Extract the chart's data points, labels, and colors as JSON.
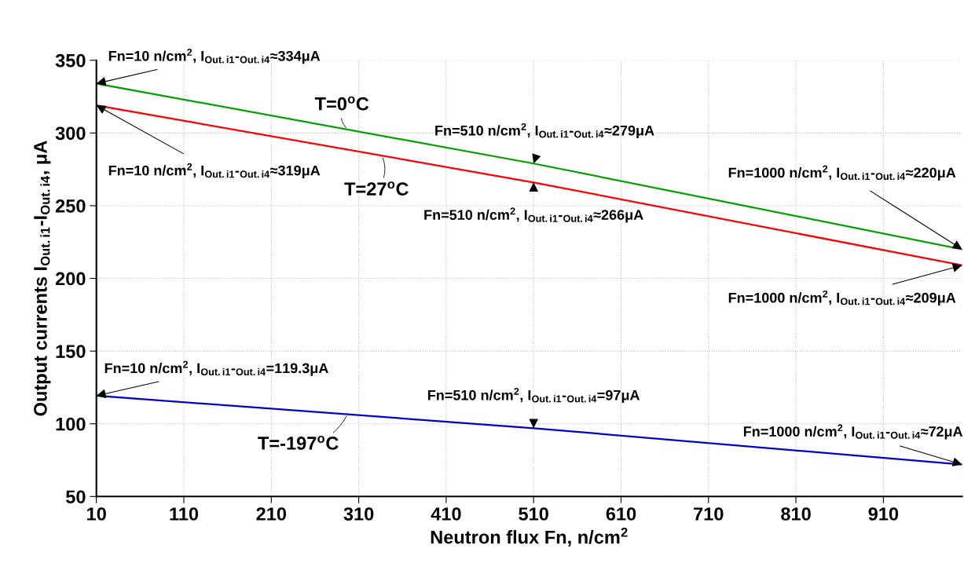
{
  "chart_data": {
    "type": "line",
    "xlabel": "Neutron flux Fn, n/cm$^{2}$",
    "ylabel": "Output currents I$_{Out.i1}$-I$_{Out.i4}$, μA",
    "x": [
      10,
      510,
      1000
    ],
    "series": [
      {
        "name": "T=0$^{o}$C",
        "color": "#00a000",
        "values": [
          334,
          279,
          220
        ]
      },
      {
        "name": "T=27$^{o}$C",
        "color": "#ff0000",
        "values": [
          319,
          266,
          209
        ]
      },
      {
        "name": "T=-197$^{o}$C",
        "color": "#0000d0",
        "values": [
          119.3,
          97,
          72
        ]
      }
    ],
    "xlim": [
      10,
      1000
    ],
    "xticks": [
      10,
      110,
      210,
      310,
      410,
      510,
      610,
      710,
      810,
      910
    ],
    "ylim": [
      50,
      350
    ],
    "yticks": [
      50,
      100,
      150,
      200,
      250,
      300,
      350
    ],
    "grid": true,
    "line_style": "solid",
    "marker": "none",
    "legend": false,
    "annotations": [
      {
        "text": "Fn=10 n/cm$^{2}$, I$_{Out.i1}$-$_{Out.i4}$≈334μA",
        "x": 10,
        "y": 334
      },
      {
        "text": "Fn=10 n/cm$^{2}$, I$_{Out.i1}$-$_{Out.i4}$≈319μA",
        "x": 10,
        "y": 319
      },
      {
        "text": "Fn=510 n/cm$^{2}$, I$_{Out.i1}$-$_{Out.i4}$≈279μA",
        "x": 510,
        "y": 279
      },
      {
        "text": "Fn=510 n/cm$^{2}$, I$_{Out.i1}$-$_{Out.i4}$≈266μA",
        "x": 510,
        "y": 266
      },
      {
        "text": "Fn=1000 n/cm$^{2}$, I$_{Out.i1}$-$_{Out.i4}$≈220μA",
        "x": 1000,
        "y": 220
      },
      {
        "text": "Fn=1000 n/cm$^{2}$, I$_{Out.i1}$-$_{Out.i4}$≈209μA",
        "x": 1000,
        "y": 209
      },
      {
        "text": "Fn=10 n/cm$^{2}$, I$_{Out.i1}$-$_{Out.i4}$=119.3μA",
        "x": 10,
        "y": 119.3
      },
      {
        "text": "Fn=510 n/cm$^{2}$, I$_{Out.i1}$-$_{Out.i4}$=97μA",
        "x": 510,
        "y": 97
      },
      {
        "text": "Fn=1000 n/cm$^{2}$, I$_{Out.i1}$-$_{Out.i4}$≈72μA",
        "x": 1000,
        "y": 72
      }
    ]
  }
}
